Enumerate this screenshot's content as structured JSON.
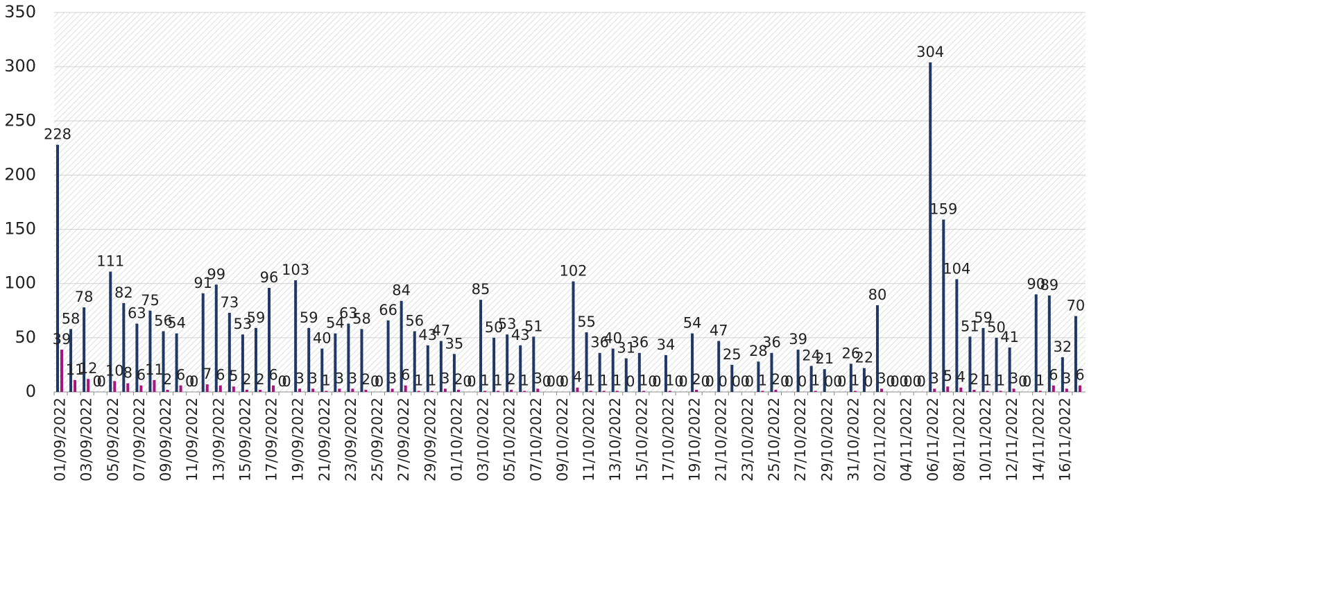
{
  "chart_data": {
    "type": "bar",
    "categories": [
      "01/09/2022",
      null,
      "03/09/2022",
      null,
      "05/09/2022",
      null,
      "07/09/2022",
      null,
      "09/09/2022",
      null,
      "11/09/2022",
      null,
      "13/09/2022",
      null,
      "15/09/2022",
      null,
      "17/09/2022",
      null,
      "19/09/2022",
      null,
      "21/09/2022",
      null,
      "23/09/2022",
      null,
      "25/09/2022",
      null,
      "27/09/2022",
      null,
      "29/09/2022",
      null,
      "01/10/2022",
      null,
      "03/10/2022",
      null,
      "05/10/2022",
      null,
      "07/10/2022",
      null,
      "09/10/2022",
      null,
      "11/10/2022",
      null,
      "13/10/2022",
      null,
      "15/10/2022",
      null,
      "17/10/2022",
      null,
      "19/10/2022",
      null,
      "21/10/2022",
      null,
      "23/10/2022",
      null,
      "25/10/2022",
      null,
      "27/10/2022",
      null,
      "29/10/2022",
      null,
      "31/10/2022",
      null,
      "02/11/2022",
      null,
      "04/11/2022",
      null,
      "06/11/2022",
      null,
      "08/11/2022",
      null,
      "10/11/2022",
      null,
      "12/11/2022",
      null,
      "14/11/2022",
      null,
      "16/11/2022",
      null
    ],
    "series": [
      {
        "color": "#1f3864",
        "values": [
          228,
          58,
          78,
          0,
          111,
          82,
          63,
          75,
          56,
          54,
          0,
          91,
          99,
          73,
          53,
          59,
          96,
          0,
          103,
          59,
          40,
          54,
          63,
          58,
          0,
          66,
          84,
          56,
          43,
          47,
          35,
          0,
          85,
          50,
          53,
          43,
          51,
          0,
          0,
          102,
          55,
          36,
          40,
          31,
          36,
          0,
          34,
          0,
          54,
          0,
          47,
          25,
          0,
          28,
          36,
          0,
          39,
          24,
          21,
          0,
          26,
          22,
          80,
          0,
          0,
          0,
          304,
          159,
          104,
          51,
          59,
          50,
          41,
          0,
          90,
          89,
          32,
          70
        ]
      },
      {
        "color": "#a8157f",
        "values": [
          39,
          11,
          12,
          0,
          10,
          8,
          6,
          11,
          2,
          6,
          0,
          7,
          6,
          5,
          2,
          2,
          6,
          0,
          3,
          3,
          1,
          3,
          3,
          2,
          0,
          3,
          6,
          1,
          1,
          3,
          2,
          0,
          1,
          1,
          2,
          1,
          3,
          0,
          0,
          4,
          1,
          1,
          1,
          0,
          1,
          0,
          1,
          0,
          2,
          0,
          0,
          0,
          0,
          1,
          2,
          0,
          0,
          1,
          0,
          0,
          1,
          0,
          3,
          0,
          0,
          0,
          3,
          5,
          4,
          2,
          1,
          1,
          3,
          0,
          1,
          6,
          3,
          6
        ]
      }
    ],
    "ylim": [
      0,
      350
    ],
    "yticks": [
      0,
      50,
      100,
      150,
      200,
      250,
      300,
      350
    ],
    "grid": true
  }
}
